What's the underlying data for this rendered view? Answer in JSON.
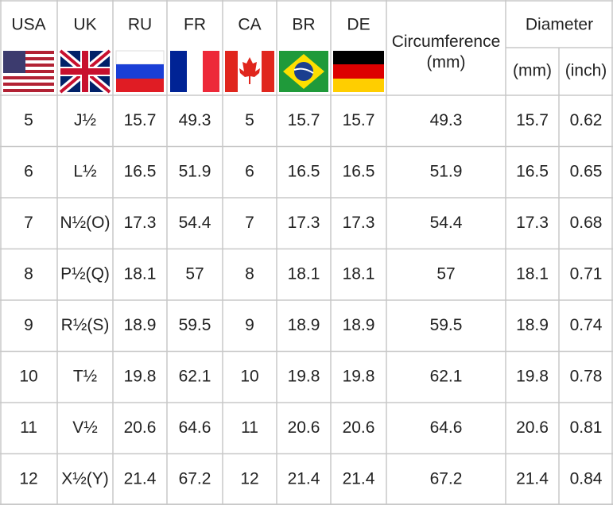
{
  "table": {
    "header": [
      "USA",
      "UK",
      "RU",
      "FR",
      "CA",
      "BR",
      "DE",
      "Circumference\n(mm)",
      "Diameter"
    ],
    "subheader": [
      "(mm)",
      "(inch)"
    ],
    "rows": [
      [
        "5",
        "J½",
        "15.7",
        "49.3",
        "5",
        "15.7",
        "15.7",
        "49.3",
        "15.7",
        "0.62"
      ],
      [
        "6",
        "L½",
        "16.5",
        "51.9",
        "6",
        "16.5",
        "16.5",
        "51.9",
        "16.5",
        "0.65"
      ],
      [
        "7",
        "N½(O)",
        "17.3",
        "54.4",
        "7",
        "17.3",
        "17.3",
        "54.4",
        "17.3",
        "0.68"
      ],
      [
        "8",
        "P½(Q)",
        "18.1",
        "57",
        "8",
        "18.1",
        "18.1",
        "57",
        "18.1",
        "0.71"
      ],
      [
        "9",
        "R½(S)",
        "18.9",
        "59.5",
        "9",
        "18.9",
        "18.9",
        "59.5",
        "18.9",
        "0.74"
      ],
      [
        "10",
        "T½",
        "19.8",
        "62.1",
        "10",
        "19.8",
        "19.8",
        "62.1",
        "19.8",
        "0.78"
      ],
      [
        "11",
        "V½",
        "20.6",
        "64.6",
        "11",
        "20.6",
        "20.6",
        "64.6",
        "20.6",
        "0.81"
      ],
      [
        "12",
        "X½(Y)",
        "21.4",
        "67.2",
        "12",
        "21.4",
        "21.4",
        "67.2",
        "21.4",
        "0.84"
      ]
    ]
  }
}
